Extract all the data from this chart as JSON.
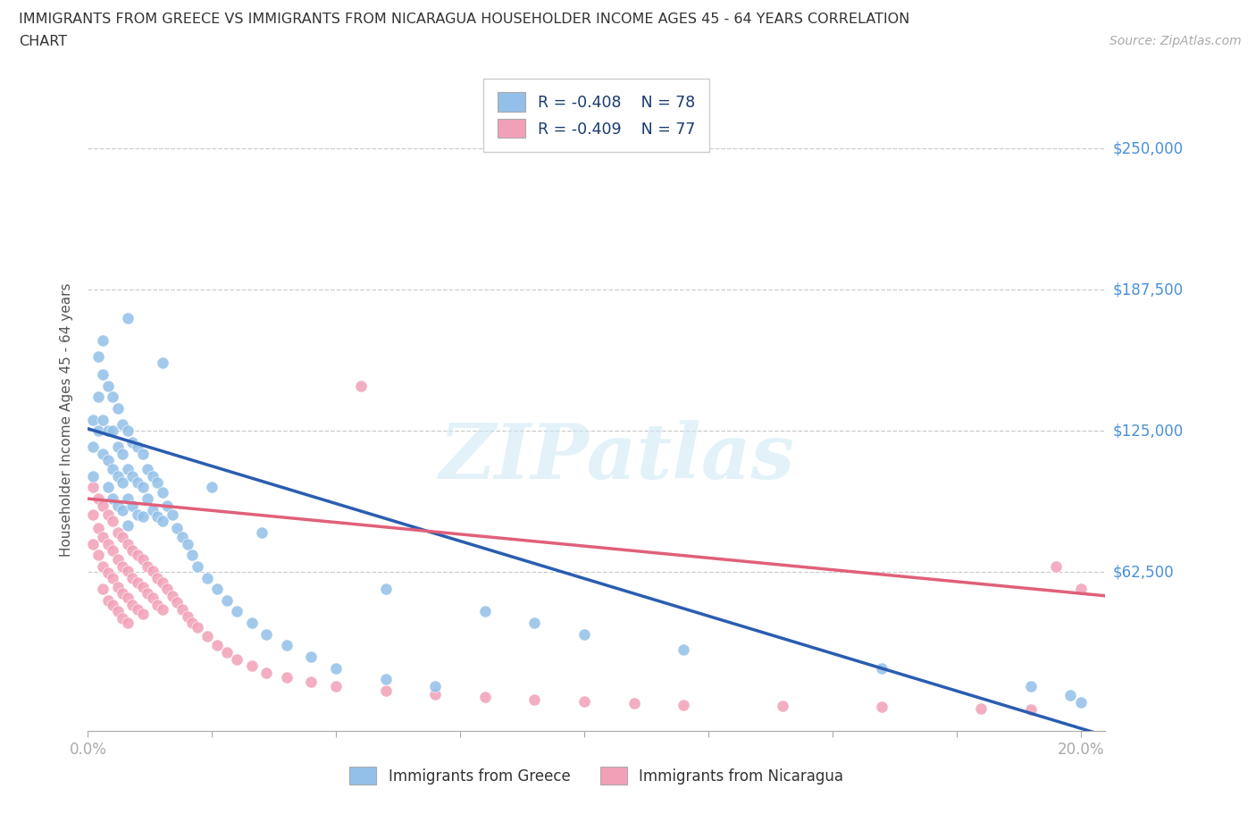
{
  "title_line1": "IMMIGRANTS FROM GREECE VS IMMIGRANTS FROM NICARAGUA HOUSEHOLDER INCOME AGES 45 - 64 YEARS CORRELATION",
  "title_line2": "CHART",
  "source": "Source: ZipAtlas.com",
  "ylabel": "Householder Income Ages 45 - 64 years",
  "xlim": [
    0.0,
    0.205
  ],
  "ylim": [
    -8000,
    268000
  ],
  "ytick_vals": [
    62500,
    125000,
    187500,
    250000
  ],
  "ytick_labels": [
    "$62,500",
    "$125,000",
    "$187,500",
    "$250,000"
  ],
  "xtick_vals": [
    0.0,
    0.025,
    0.05,
    0.075,
    0.1,
    0.125,
    0.15,
    0.175,
    0.2
  ],
  "xtick_labels": [
    "0.0%",
    "",
    "",
    "",
    "",
    "",
    "",
    "",
    "20.0%"
  ],
  "greece_color": "#92c0e8",
  "nicaragua_color": "#f2a0b8",
  "greece_line_color": "#2a5db0",
  "nicaragua_line_color": "#e0607a",
  "greece_R": -0.408,
  "greece_N": 78,
  "nicaragua_R": -0.409,
  "nicaragua_N": 77,
  "watermark": "ZIPatlas",
  "greece_line_x0": 0.0,
  "greece_line_y0": 126000,
  "greece_line_x1": 0.205,
  "greece_line_y1": -10000,
  "nicaragua_line_x0": 0.0,
  "nicaragua_line_y0": 95000,
  "nicaragua_line_x1": 0.205,
  "nicaragua_line_y1": 52000,
  "greece_x": [
    0.001,
    0.001,
    0.001,
    0.002,
    0.002,
    0.002,
    0.003,
    0.003,
    0.003,
    0.003,
    0.004,
    0.004,
    0.004,
    0.004,
    0.005,
    0.005,
    0.005,
    0.005,
    0.006,
    0.006,
    0.006,
    0.006,
    0.007,
    0.007,
    0.007,
    0.007,
    0.008,
    0.008,
    0.008,
    0.008,
    0.009,
    0.009,
    0.009,
    0.01,
    0.01,
    0.01,
    0.011,
    0.011,
    0.011,
    0.012,
    0.012,
    0.013,
    0.013,
    0.014,
    0.014,
    0.015,
    0.015,
    0.016,
    0.017,
    0.018,
    0.019,
    0.02,
    0.021,
    0.022,
    0.024,
    0.026,
    0.028,
    0.03,
    0.033,
    0.036,
    0.04,
    0.045,
    0.05,
    0.06,
    0.07,
    0.008,
    0.015,
    0.025,
    0.035,
    0.06,
    0.08,
    0.09,
    0.1,
    0.12,
    0.16,
    0.19,
    0.198,
    0.2
  ],
  "greece_y": [
    130000,
    118000,
    105000,
    158000,
    140000,
    125000,
    150000,
    165000,
    130000,
    115000,
    145000,
    125000,
    112000,
    100000,
    140000,
    125000,
    108000,
    95000,
    135000,
    118000,
    105000,
    92000,
    128000,
    115000,
    102000,
    90000,
    125000,
    108000,
    95000,
    83000,
    120000,
    105000,
    92000,
    118000,
    102000,
    88000,
    115000,
    100000,
    87000,
    108000,
    95000,
    105000,
    90000,
    102000,
    87000,
    98000,
    85000,
    92000,
    88000,
    82000,
    78000,
    75000,
    70000,
    65000,
    60000,
    55000,
    50000,
    45000,
    40000,
    35000,
    30000,
    25000,
    20000,
    15000,
    12000,
    175000,
    155000,
    100000,
    80000,
    55000,
    45000,
    40000,
    35000,
    28000,
    20000,
    12000,
    8000,
    5000
  ],
  "nicaragua_x": [
    0.001,
    0.001,
    0.001,
    0.002,
    0.002,
    0.002,
    0.003,
    0.003,
    0.003,
    0.003,
    0.004,
    0.004,
    0.004,
    0.004,
    0.005,
    0.005,
    0.005,
    0.005,
    0.006,
    0.006,
    0.006,
    0.006,
    0.007,
    0.007,
    0.007,
    0.007,
    0.008,
    0.008,
    0.008,
    0.008,
    0.009,
    0.009,
    0.009,
    0.01,
    0.01,
    0.01,
    0.011,
    0.011,
    0.011,
    0.012,
    0.012,
    0.013,
    0.013,
    0.014,
    0.014,
    0.015,
    0.015,
    0.016,
    0.017,
    0.018,
    0.019,
    0.02,
    0.021,
    0.022,
    0.024,
    0.026,
    0.028,
    0.03,
    0.033,
    0.036,
    0.04,
    0.045,
    0.05,
    0.06,
    0.07,
    0.08,
    0.09,
    0.1,
    0.11,
    0.12,
    0.14,
    0.16,
    0.18,
    0.19,
    0.195,
    0.2,
    0.055
  ],
  "nicaragua_y": [
    100000,
    88000,
    75000,
    95000,
    82000,
    70000,
    92000,
    78000,
    65000,
    55000,
    88000,
    75000,
    62000,
    50000,
    85000,
    72000,
    60000,
    48000,
    80000,
    68000,
    56000,
    45000,
    78000,
    65000,
    53000,
    42000,
    75000,
    63000,
    51000,
    40000,
    72000,
    60000,
    48000,
    70000,
    58000,
    46000,
    68000,
    56000,
    44000,
    65000,
    53000,
    63000,
    51000,
    60000,
    48000,
    58000,
    46000,
    55000,
    52000,
    49000,
    46000,
    43000,
    40000,
    38000,
    34000,
    30000,
    27000,
    24000,
    21000,
    18000,
    16000,
    14000,
    12000,
    10000,
    8500,
    7200,
    6000,
    5200,
    4500,
    3800,
    3200,
    2700,
    2200,
    1800,
    65000,
    55000,
    145000
  ]
}
